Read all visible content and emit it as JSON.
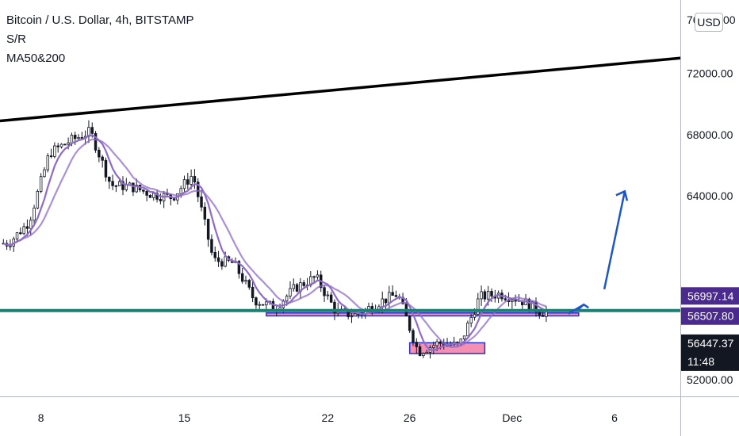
{
  "header": {
    "symbol_title": "Bitcoin / U.S. Dollar, 4h, BITSTAMP",
    "indicator_1": "S/R",
    "indicator_2": "MA50&200",
    "currency": "USD"
  },
  "chart_data": {
    "type": "candlestick",
    "title": "Bitcoin / U.S. Dollar, 4h, BITSTAMP",
    "y_axis": {
      "ticks": [
        52000,
        64000,
        68000,
        72000
      ],
      "partial_tick_labels": [
        "76",
        "00"
      ],
      "range": [
        50900,
        76800
      ]
    },
    "x_axis": {
      "ticks": [
        "8",
        "15",
        "22",
        "26",
        "Dec",
        "6"
      ],
      "date_range": [
        "2021-11-06",
        "2021-12-08"
      ]
    },
    "price_tags": [
      {
        "value": "56997.14",
        "color": "#4a2a8c"
      },
      {
        "value": "56507.80",
        "color": "#4a2a8c"
      },
      {
        "value": "56447.37",
        "color": "#131722",
        "countdown": "11:48"
      }
    ],
    "approx_price_path": [
      {
        "date": "2021-11-06",
        "price": 60900
      },
      {
        "date": "2021-11-07",
        "price": 62300
      },
      {
        "date": "2021-11-08",
        "price": 66800
      },
      {
        "date": "2021-11-09",
        "price": 67600
      },
      {
        "date": "2021-11-10",
        "price": 68200
      },
      {
        "date": "2021-11-11",
        "price": 64700
      },
      {
        "date": "2021-11-12",
        "price": 64600
      },
      {
        "date": "2021-11-13",
        "price": 64100
      },
      {
        "date": "2021-11-14",
        "price": 63900
      },
      {
        "date": "2021-11-15",
        "price": 65400
      },
      {
        "date": "2021-11-16",
        "price": 59800
      },
      {
        "date": "2021-11-17",
        "price": 59600
      },
      {
        "date": "2021-11-18",
        "price": 57200
      },
      {
        "date": "2021-11-19",
        "price": 56700
      },
      {
        "date": "2021-11-20",
        "price": 58000
      },
      {
        "date": "2021-11-21",
        "price": 58700
      },
      {
        "date": "2021-11-22",
        "price": 56400
      },
      {
        "date": "2021-11-23",
        "price": 56200
      },
      {
        "date": "2021-11-24",
        "price": 57000
      },
      {
        "date": "2021-11-25",
        "price": 57600
      },
      {
        "date": "2021-11-26",
        "price": 53800
      },
      {
        "date": "2021-11-27",
        "price": 54400
      },
      {
        "date": "2021-11-28",
        "price": 54200
      },
      {
        "date": "2021-11-29",
        "price": 57400
      },
      {
        "date": "2021-11-30",
        "price": 57600
      },
      {
        "date": "2021-12-01",
        "price": 57200
      },
      {
        "date": "2021-12-02",
        "price": 56400
      }
    ],
    "drawings": {
      "resistance_line_value": 56507.8,
      "support_zone_values": [
        56160,
        56350
      ],
      "lower_zone_values": [
        53700,
        54400
      ],
      "trendline_start": {
        "date": "2021-11-06",
        "price": 68900
      },
      "trendline_end": {
        "date": "2021-12-10",
        "price": 73100
      },
      "projection_arrows": "up"
    },
    "colors": {
      "up_candle": "#ffffff",
      "down_candle": "#131722",
      "moving_average": "#8e6bc7",
      "resistance_line": "#1b7f72",
      "support_zone_fill": "#f27da7",
      "zone_border": "#2632c8",
      "trendline": "#000000",
      "projection": "#1e55c8"
    }
  }
}
